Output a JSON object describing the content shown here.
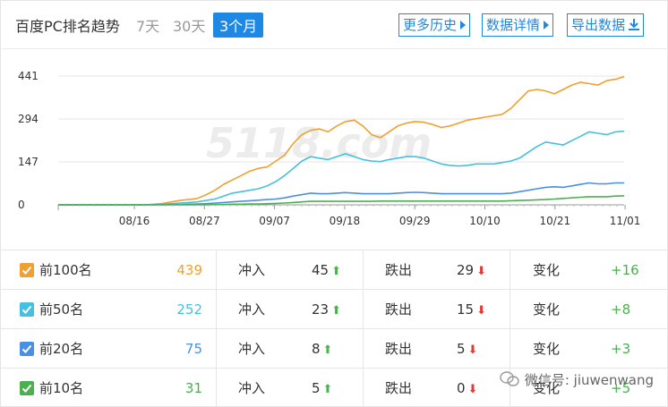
{
  "header": {
    "title": "百度PC排名趋势",
    "tabs": [
      {
        "label": "7天",
        "active": false
      },
      {
        "label": "30天",
        "active": false
      },
      {
        "label": "3个月",
        "active": true
      }
    ],
    "buttons": {
      "history": "更多历史",
      "details": "数据详情",
      "export": "导出数据"
    }
  },
  "colors": {
    "accent": "#1e88e5",
    "top100": "#f0a030",
    "top50": "#45c0e0",
    "top20": "#4a90e2",
    "top10": "#4caf50",
    "up": "#4caf50",
    "down": "#e53935"
  },
  "chart_data": {
    "type": "line",
    "yticks": [
      "441",
      "294",
      "147",
      "0"
    ],
    "xticks": [
      "08/16",
      "08/27",
      "09/07",
      "09/18",
      "09/29",
      "10/10",
      "10/21",
      "11/01"
    ],
    "ylim": [
      0,
      441
    ],
    "grid": true,
    "watermark_text": "5118.com",
    "series": [
      {
        "key": "top100",
        "name": "前100名",
        "values": [
          0,
          0,
          0,
          0,
          0,
          0,
          0,
          0,
          0,
          0,
          0,
          2,
          5,
          10,
          15,
          18,
          22,
          35,
          50,
          70,
          85,
          100,
          115,
          125,
          130,
          150,
          170,
          210,
          240,
          255,
          260,
          250,
          270,
          285,
          290,
          270,
          240,
          230,
          250,
          270,
          280,
          285,
          283,
          275,
          265,
          270,
          280,
          290,
          295,
          300,
          305,
          310,
          330,
          360,
          390,
          395,
          390,
          380,
          395,
          410,
          420,
          415,
          410,
          425,
          430,
          439
        ]
      },
      {
        "key": "top50",
        "name": "前50名",
        "values": [
          0,
          0,
          0,
          0,
          0,
          0,
          0,
          0,
          0,
          0,
          0,
          1,
          2,
          4,
          6,
          8,
          10,
          15,
          20,
          30,
          40,
          45,
          50,
          55,
          65,
          80,
          100,
          125,
          150,
          165,
          160,
          155,
          165,
          175,
          165,
          155,
          150,
          148,
          155,
          160,
          165,
          165,
          160,
          150,
          140,
          135,
          133,
          135,
          140,
          140,
          140,
          145,
          150,
          160,
          180,
          200,
          215,
          210,
          205,
          220,
          235,
          250,
          245,
          240,
          250,
          252
        ]
      },
      {
        "key": "top20",
        "name": "前20名",
        "values": [
          0,
          0,
          0,
          0,
          0,
          0,
          0,
          0,
          0,
          0,
          0,
          0,
          0,
          1,
          1,
          2,
          3,
          4,
          6,
          8,
          10,
          12,
          14,
          16,
          18,
          20,
          24,
          30,
          35,
          40,
          38,
          38,
          40,
          42,
          40,
          38,
          38,
          38,
          38,
          40,
          42,
          43,
          42,
          40,
          38,
          38,
          38,
          38,
          38,
          38,
          38,
          38,
          40,
          45,
          50,
          55,
          60,
          62,
          60,
          65,
          70,
          75,
          72,
          72,
          75,
          75
        ]
      },
      {
        "key": "top10",
        "name": "前10名",
        "values": [
          0,
          0,
          0,
          0,
          0,
          0,
          0,
          0,
          0,
          0,
          0,
          0,
          0,
          0,
          0,
          0,
          0,
          0,
          1,
          1,
          2,
          2,
          3,
          3,
          4,
          5,
          6,
          8,
          10,
          12,
          12,
          12,
          12,
          12,
          12,
          12,
          12,
          13,
          13,
          13,
          13,
          13,
          13,
          13,
          13,
          13,
          13,
          13,
          13,
          13,
          13,
          13,
          14,
          15,
          16,
          17,
          18,
          20,
          22,
          24,
          26,
          28,
          28,
          28,
          30,
          31
        ]
      }
    ]
  },
  "table": {
    "rows": [
      {
        "key": "top100",
        "label": "前100名",
        "count": "439",
        "in_label": "冲入",
        "in_value": "45",
        "out_label": "跌出",
        "out_value": "29",
        "change_label": "变化",
        "change_value": "+16"
      },
      {
        "key": "top50",
        "label": "前50名",
        "count": "252",
        "in_label": "冲入",
        "in_value": "23",
        "out_label": "跌出",
        "out_value": "15",
        "change_label": "变化",
        "change_value": "+8"
      },
      {
        "key": "top20",
        "label": "前20名",
        "count": "75",
        "in_label": "冲入",
        "in_value": "8",
        "out_label": "跌出",
        "out_value": "5",
        "change_label": "变化",
        "change_value": "+3"
      },
      {
        "key": "top10",
        "label": "前10名",
        "count": "31",
        "in_label": "冲入",
        "in_value": "5",
        "out_label": "跌出",
        "out_value": "0",
        "change_label": "变化",
        "change_value": "+5"
      }
    ]
  },
  "watermark": {
    "text": "微信号: jiuwenwang"
  }
}
